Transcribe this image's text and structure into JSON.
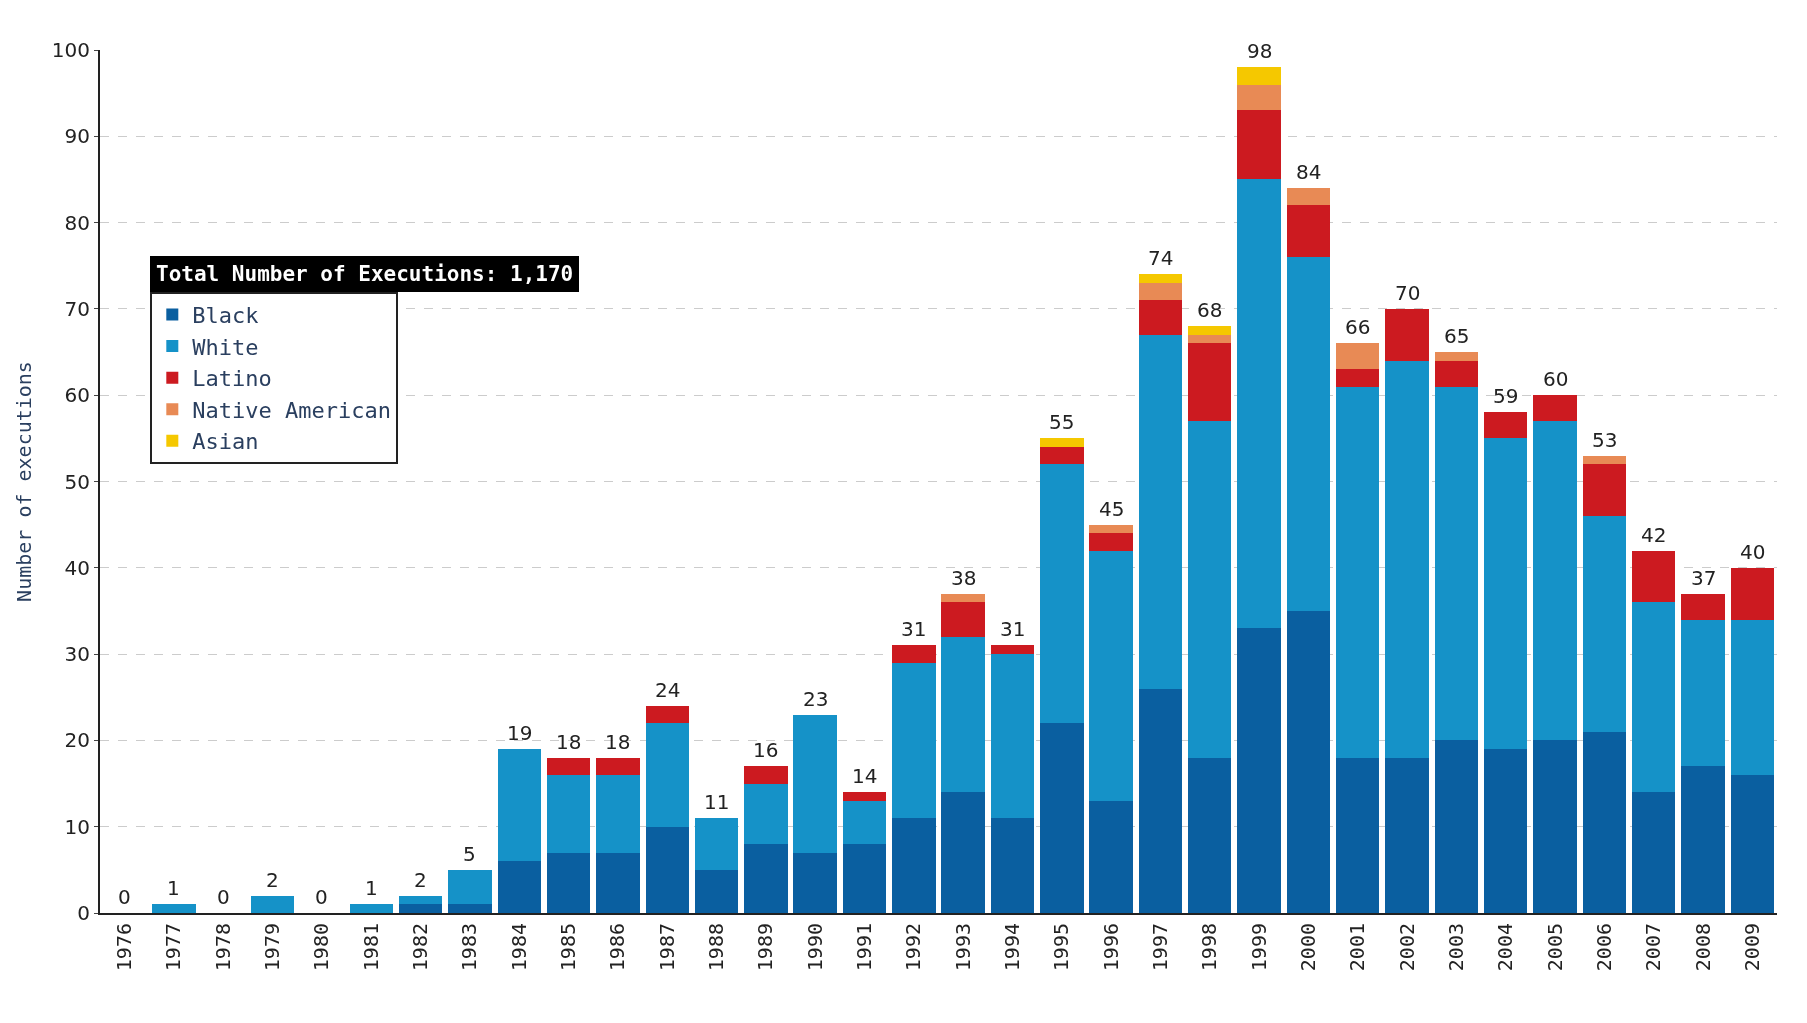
{
  "chart_data": {
    "type": "bar",
    "stacked": true,
    "ylabel": "Number of executions",
    "legend_title": "Total Number of Executions: 1,170",
    "categories": [
      "1976",
      "1977",
      "1978",
      "1979",
      "1980",
      "1981",
      "1982",
      "1983",
      "1984",
      "1985",
      "1986",
      "1987",
      "1988",
      "1989",
      "1990",
      "1991",
      "1992",
      "1993",
      "1994",
      "1995",
      "1996",
      "1997",
      "1998",
      "1999",
      "2000",
      "2001",
      "2002",
      "2003",
      "2004",
      "2005",
      "2006",
      "2007",
      "2008",
      "2009"
    ],
    "series": [
      {
        "name": "Black",
        "color": "#0a5fa0",
        "values": [
          0,
          0,
          0,
          0,
          0,
          0,
          1,
          1,
          6,
          7,
          7,
          10,
          5,
          8,
          7,
          8,
          11,
          14,
          11,
          22,
          13,
          26,
          18,
          33,
          35,
          18,
          18,
          20,
          19,
          20,
          21,
          14,
          17,
          16
        ]
      },
      {
        "name": "White",
        "color": "#1592c8",
        "values": [
          0,
          1,
          0,
          2,
          0,
          1,
          1,
          4,
          13,
          9,
          9,
          12,
          6,
          7,
          16,
          5,
          18,
          18,
          19,
          30,
          29,
          41,
          39,
          52,
          41,
          43,
          46,
          41,
          36,
          37,
          25,
          22,
          17,
          18
        ]
      },
      {
        "name": "Latino",
        "color": "#cc1a20",
        "values": [
          0,
          0,
          0,
          0,
          0,
          0,
          0,
          0,
          0,
          2,
          2,
          2,
          0,
          2,
          0,
          1,
          2,
          4,
          1,
          2,
          2,
          4,
          9,
          8,
          6,
          2,
          6,
          3,
          3,
          3,
          6,
          6,
          3,
          6
        ]
      },
      {
        "name": "Native American",
        "color": "#e88a55",
        "values": [
          0,
          0,
          0,
          0,
          0,
          0,
          0,
          0,
          0,
          0,
          0,
          0,
          0,
          0,
          0,
          0,
          0,
          1,
          0,
          0,
          1,
          2,
          1,
          3,
          2,
          3,
          0,
          1,
          0,
          0,
          1,
          0,
          0,
          0
        ]
      },
      {
        "name": "Asian",
        "color": "#f5c800",
        "values": [
          0,
          0,
          0,
          0,
          0,
          0,
          0,
          0,
          0,
          0,
          0,
          0,
          0,
          0,
          0,
          0,
          0,
          0,
          0,
          1,
          0,
          1,
          1,
          2,
          0,
          0,
          0,
          0,
          0,
          0,
          0,
          0,
          0,
          0
        ]
      }
    ],
    "totals": [
      "0",
      "1",
      "0",
      "2",
      "0",
      "1",
      "2",
      "5",
      "19",
      "18",
      "18",
      "24",
      "11",
      "16",
      "23",
      "14",
      "31",
      "38",
      "31",
      "55",
      "45",
      "74",
      "68",
      "98",
      "84",
      "66",
      "70",
      "65",
      "59",
      "60",
      "53",
      "42",
      "37",
      "40"
    ],
    "ylim": [
      0,
      100
    ],
    "yticks": [
      0,
      10,
      20,
      30,
      40,
      50,
      60,
      70,
      80,
      90,
      100
    ],
    "grid": "y",
    "legend": "top left"
  }
}
